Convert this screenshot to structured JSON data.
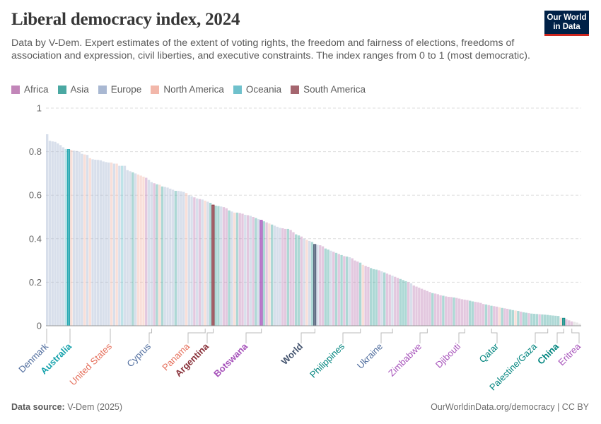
{
  "header": {
    "title": "Liberal democracy index, 2024",
    "subtitle": "Data by V-Dem. Expert estimates of the extent of voting rights, the freedom and fairness of elections, freedoms of association and expression, civil liberties, and executive constraints. The index ranges from 0 to 1 (most democratic).",
    "logo_line1": "Our World",
    "logo_line2": "in Data"
  },
  "legend": [
    {
      "label": "Africa",
      "color": "#c286b9"
    },
    {
      "label": "Asia",
      "color": "#4aa8a2"
    },
    {
      "label": "Europe",
      "color": "#a9b8d2"
    },
    {
      "label": "North America",
      "color": "#f2b7aa"
    },
    {
      "label": "Oceania",
      "color": "#6fc1cc"
    },
    {
      "label": "South America",
      "color": "#a5666f"
    }
  ],
  "region_colors": {
    "Africa": "#a652ba",
    "Asia": "#00847e",
    "Europe": "#4c6a9c",
    "North America": "#e56e5a",
    "Oceania": "#18a3ad",
    "South America": "#883039",
    "World": "#44546f"
  },
  "footer": {
    "source_label": "Data source:",
    "source_value": "V-Dem (2025)",
    "url": "OurWorldinData.org/democracy | CC BY"
  },
  "chart_data": {
    "type": "bar",
    "title": "Liberal democracy index, 2024",
    "xlabel": "",
    "ylabel": "",
    "ylim": [
      0,
      1
    ],
    "yticks": [
      0,
      0.2,
      0.4,
      0.6,
      0.8,
      1
    ],
    "ytick_labels": [
      "0",
      "0.2",
      "0.4",
      "0.6",
      "0.8",
      "1"
    ],
    "grid": true,
    "legend_position": "top-left",
    "sorted": "descending",
    "labeled_bars": [
      {
        "label": "Denmark",
        "region": "Europe",
        "value": 0.88
      },
      {
        "label": "Australia",
        "region": "Oceania",
        "value": 0.81
      },
      {
        "label": "United States",
        "region": "North America",
        "value": 0.75
      },
      {
        "label": "Cyprus",
        "region": "Europe",
        "value": 0.65
      },
      {
        "label": "Panama",
        "region": "North America",
        "value": 0.58
      },
      {
        "label": "Argentina",
        "region": "South America",
        "value": 0.55
      },
      {
        "label": "Botswana",
        "region": "Africa",
        "value": 0.48
      },
      {
        "label": "World",
        "region": "World",
        "value": 0.37
      },
      {
        "label": "Philippines",
        "region": "Asia",
        "value": 0.3
      },
      {
        "label": "Ukraine",
        "region": "Europe",
        "value": 0.23
      },
      {
        "label": "Zimbabwe",
        "region": "Africa",
        "value": 0.16
      },
      {
        "label": "Djibouti",
        "region": "Africa",
        "value": 0.12
      },
      {
        "label": "Qatar",
        "region": "Asia",
        "value": 0.09
      },
      {
        "label": "Palestine/Gaza",
        "region": "Asia",
        "value": 0.05
      },
      {
        "label": "China",
        "region": "Asia",
        "value": 0.03
      },
      {
        "label": "Eritrea",
        "region": "Africa",
        "value": 0.01
      }
    ],
    "highlighted": [
      "Australia",
      "Argentina",
      "Botswana",
      "World",
      "China"
    ],
    "series": [
      {
        "name": "Liberal democracy index",
        "regions": [
          "Europe",
          "Europe",
          "Europe",
          "Europe",
          "Europe",
          "Europe",
          "Europe",
          "Oceania",
          "Oceania",
          "North America",
          "Europe",
          "Europe",
          "Europe",
          "Europe",
          "North America",
          "Europe",
          "North America",
          "Europe",
          "Europe",
          "Europe",
          "Europe",
          "Europe",
          "Europe",
          "Europe",
          "North America",
          "Europe",
          "North America",
          "Europe",
          "Oceania",
          "Europe",
          "Europe",
          "Europe",
          "Asia",
          "Europe",
          "North America",
          "North America",
          "North America",
          "Africa",
          "Europe",
          "Europe",
          "Africa",
          "Asia",
          "North America",
          "Asia",
          "Europe",
          "Europe",
          "Europe",
          "Europe",
          "Asia",
          "Europe",
          "Europe",
          "Europe",
          "North America",
          "Europe",
          "Europe",
          "Africa",
          "Europe",
          "Africa",
          "Europe",
          "North America",
          "Europe",
          "Asia",
          "South America",
          "Asia",
          "Asia",
          "Europe",
          "Africa",
          "Africa",
          "Asia",
          "Europe",
          "North America",
          "Asia",
          "Africa",
          "Africa",
          "Europe",
          "Africa",
          "Europe",
          "Africa",
          "Asia",
          "Europe",
          "Africa",
          "Asia",
          "Africa",
          "North America",
          "Asia",
          "Europe",
          "Europe",
          "Europe",
          "Africa",
          "Africa",
          "Asia",
          "Africa",
          "Africa",
          "Asia",
          "Asia",
          "Africa",
          "Europe",
          "North America",
          "Europe",
          "Asia",
          "World",
          "Europe",
          "Africa",
          "Africa",
          "Asia",
          "Asia",
          "Europe",
          "Africa",
          "Asia",
          "Africa",
          "Asia",
          "Africa",
          "Asia",
          "Europe",
          "Africa",
          "Africa",
          "Africa",
          "Asia",
          "North America",
          "Africa",
          "Africa",
          "Asia",
          "Asia",
          "Asia",
          "Africa",
          "Europe",
          "Asia",
          "Africa",
          "Africa",
          "Europe",
          "Africa",
          "Africa",
          "Asia",
          "Asia",
          "Asia",
          "Africa",
          "Europe",
          "Africa",
          "Africa",
          "Africa",
          "Africa",
          "Africa",
          "Africa",
          "Africa",
          "Asia",
          "Africa",
          "Africa",
          "Africa",
          "Asia",
          "Africa",
          "Africa",
          "Africa",
          "Asia",
          "Africa",
          "Africa",
          "Africa",
          "Africa",
          "Africa",
          "Asia",
          "Asia",
          "Africa",
          "Africa",
          "Africa",
          "Africa",
          "Asia",
          "Africa",
          "Asia",
          "Africa",
          "Africa",
          "North America",
          "Asia",
          "Africa",
          "Africa",
          "Asia",
          "Asia",
          "North America",
          "Asia",
          "Africa",
          "Asia",
          "Asia",
          "Africa",
          "Asia",
          "Asia",
          "Asia",
          "Africa",
          "Asia",
          "Asia",
          "Asia",
          "Asia",
          "Asia",
          "Asia",
          "Asia",
          "North America",
          "Asia",
          "Africa",
          "Africa",
          "Africa"
        ],
        "values": [
          0.88,
          0.85,
          0.847,
          0.845,
          0.838,
          0.83,
          0.82,
          0.812,
          0.81,
          0.808,
          0.805,
          0.803,
          0.8,
          0.79,
          0.787,
          0.785,
          0.77,
          0.765,
          0.763,
          0.762,
          0.76,
          0.755,
          0.752,
          0.75,
          0.75,
          0.745,
          0.745,
          0.735,
          0.735,
          0.735,
          0.715,
          0.71,
          0.705,
          0.7,
          0.695,
          0.69,
          0.685,
          0.68,
          0.67,
          0.66,
          0.655,
          0.65,
          0.648,
          0.64,
          0.638,
          0.635,
          0.63,
          0.625,
          0.62,
          0.62,
          0.618,
          0.615,
          0.61,
          0.6,
          0.595,
          0.59,
          0.585,
          0.582,
          0.58,
          0.575,
          0.57,
          0.565,
          0.555,
          0.552,
          0.55,
          0.548,
          0.545,
          0.54,
          0.53,
          0.525,
          0.52,
          0.52,
          0.518,
          0.515,
          0.51,
          0.508,
          0.505,
          0.5,
          0.495,
          0.49,
          0.485,
          0.48,
          0.475,
          0.47,
          0.465,
          0.46,
          0.455,
          0.45,
          0.448,
          0.445,
          0.445,
          0.44,
          0.43,
          0.42,
          0.415,
          0.41,
          0.4,
          0.395,
          0.39,
          0.385,
          0.374,
          0.372,
          0.37,
          0.365,
          0.355,
          0.35,
          0.345,
          0.34,
          0.335,
          0.33,
          0.325,
          0.32,
          0.318,
          0.315,
          0.31,
          0.3,
          0.295,
          0.29,
          0.28,
          0.275,
          0.27,
          0.265,
          0.26,
          0.258,
          0.255,
          0.25,
          0.245,
          0.24,
          0.235,
          0.23,
          0.225,
          0.22,
          0.215,
          0.21,
          0.205,
          0.2,
          0.195,
          0.185,
          0.18,
          0.175,
          0.17,
          0.165,
          0.16,
          0.155,
          0.15,
          0.148,
          0.145,
          0.14,
          0.138,
          0.135,
          0.133,
          0.132,
          0.13,
          0.128,
          0.125,
          0.122,
          0.12,
          0.118,
          0.115,
          0.112,
          0.11,
          0.108,
          0.105,
          0.1,
          0.098,
          0.095,
          0.092,
          0.09,
          0.088,
          0.085,
          0.082,
          0.08,
          0.078,
          0.075,
          0.072,
          0.07,
          0.068,
          0.065,
          0.062,
          0.06,
          0.058,
          0.056,
          0.055,
          0.054,
          0.053,
          0.052,
          0.051,
          0.05,
          0.048,
          0.047,
          0.046,
          0.045,
          0.037,
          0.035,
          0.03,
          0.025,
          0.02,
          0.018,
          0.015,
          0.01
        ]
      }
    ]
  }
}
